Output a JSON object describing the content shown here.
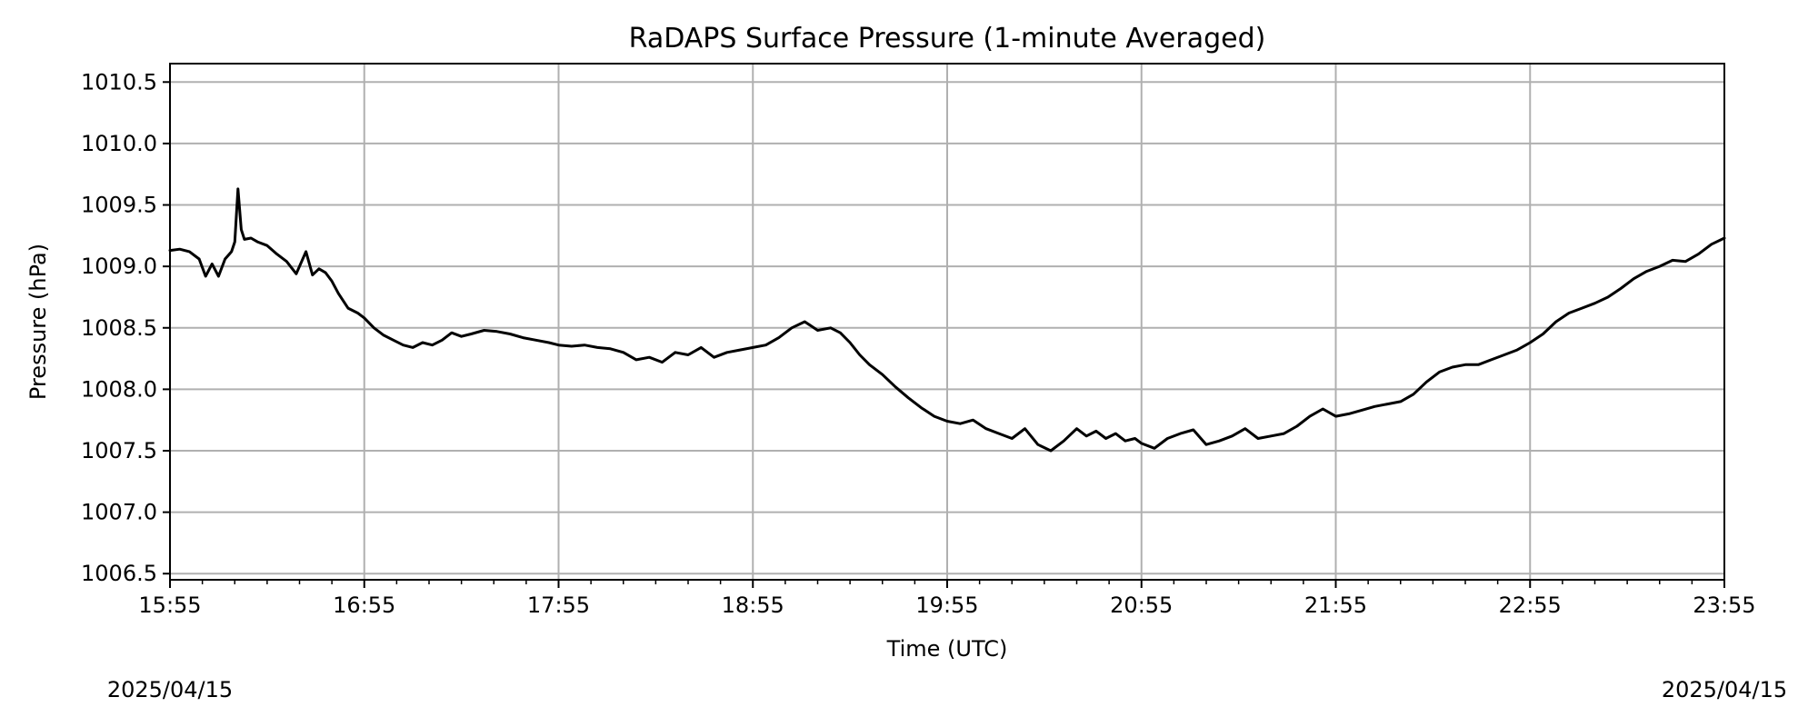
{
  "chart_data": {
    "type": "line",
    "title": "RaDAPS Surface Pressure (1-minute Averaged)",
    "xlabel": "Time (UTC)",
    "ylabel": "Pressure (hPa)",
    "x_tick_labels": [
      "15:55",
      "16:55",
      "17:55",
      "18:55",
      "19:55",
      "20:55",
      "21:55",
      "22:55",
      "23:55"
    ],
    "y_tick_labels": [
      "1006.5",
      "1007.0",
      "1007.5",
      "1008.0",
      "1008.5",
      "1009.0",
      "1009.5",
      "1010.0",
      "1010.5"
    ],
    "y_ticks": [
      1006.5,
      1007.0,
      1007.5,
      1008.0,
      1008.5,
      1009.0,
      1009.5,
      1010.0,
      1010.5
    ],
    "xlim": [
      "15:55",
      "23:55"
    ],
    "ylim": [
      1006.45,
      1010.65
    ],
    "grid": true,
    "date_left": "2025/04/15",
    "date_right": "2025/04/15",
    "series": [
      {
        "color": "#000000",
        "x": [
          "15:55",
          "15:58",
          "16:01",
          "16:04",
          "16:06",
          "16:08",
          "16:10",
          "16:12",
          "16:14",
          "16:15",
          "16:16",
          "16:17",
          "16:18",
          "16:20",
          "16:22",
          "16:25",
          "16:28",
          "16:31",
          "16:34",
          "16:37",
          "16:39",
          "16:41",
          "16:43",
          "16:45",
          "16:47",
          "16:50",
          "16:53",
          "16:55",
          "16:58",
          "17:01",
          "17:04",
          "17:07",
          "17:10",
          "17:13",
          "17:16",
          "17:19",
          "17:22",
          "17:25",
          "17:28",
          "17:32",
          "17:36",
          "17:40",
          "17:44",
          "17:48",
          "17:52",
          "17:55",
          "17:59",
          "18:03",
          "18:07",
          "18:11",
          "18:15",
          "18:19",
          "18:23",
          "18:27",
          "18:31",
          "18:35",
          "18:39",
          "18:43",
          "18:47",
          "18:51",
          "18:55",
          "18:59",
          "19:03",
          "19:07",
          "19:11",
          "19:15",
          "19:19",
          "19:22",
          "19:25",
          "19:28",
          "19:31",
          "19:35",
          "19:39",
          "19:43",
          "19:47",
          "19:51",
          "19:55",
          "19:59",
          "20:03",
          "20:07",
          "20:11",
          "20:15",
          "20:19",
          "20:23",
          "20:27",
          "20:31",
          "20:35",
          "20:38",
          "20:41",
          "20:44",
          "20:47",
          "20:50",
          "20:53",
          "20:55",
          "20:59",
          "21:03",
          "21:07",
          "21:11",
          "21:15",
          "21:19",
          "21:23",
          "21:27",
          "21:31",
          "21:35",
          "21:39",
          "21:43",
          "21:47",
          "21:51",
          "21:55",
          "21:59",
          "22:03",
          "22:07",
          "22:11",
          "22:15",
          "22:19",
          "22:23",
          "22:27",
          "22:31",
          "22:35",
          "22:39",
          "22:43",
          "22:47",
          "22:51",
          "22:55",
          "22:59",
          "23:03",
          "23:07",
          "23:11",
          "23:15",
          "23:19",
          "23:23",
          "23:27",
          "23:31",
          "23:35",
          "23:39",
          "23:43",
          "23:47",
          "23:51",
          "23:55"
        ],
        "y": [
          1009.13,
          1009.14,
          1009.12,
          1009.06,
          1008.92,
          1009.02,
          1008.92,
          1009.06,
          1009.12,
          1009.2,
          1009.63,
          1009.3,
          1009.22,
          1009.23,
          1009.2,
          1009.17,
          1009.1,
          1009.04,
          1008.94,
          1009.12,
          1008.93,
          1008.98,
          1008.95,
          1008.88,
          1008.78,
          1008.66,
          1008.62,
          1008.58,
          1008.5,
          1008.44,
          1008.4,
          1008.36,
          1008.34,
          1008.38,
          1008.36,
          1008.4,
          1008.46,
          1008.43,
          1008.45,
          1008.48,
          1008.47,
          1008.45,
          1008.42,
          1008.4,
          1008.38,
          1008.36,
          1008.35,
          1008.36,
          1008.34,
          1008.33,
          1008.3,
          1008.24,
          1008.26,
          1008.22,
          1008.3,
          1008.28,
          1008.34,
          1008.26,
          1008.3,
          1008.32,
          1008.34,
          1008.36,
          1008.42,
          1008.5,
          1008.55,
          1008.48,
          1008.5,
          1008.46,
          1008.38,
          1008.28,
          1008.2,
          1008.12,
          1008.02,
          1007.93,
          1007.85,
          1007.78,
          1007.74,
          1007.72,
          1007.75,
          1007.68,
          1007.64,
          1007.6,
          1007.68,
          1007.55,
          1007.5,
          1007.58,
          1007.68,
          1007.62,
          1007.66,
          1007.6,
          1007.64,
          1007.58,
          1007.6,
          1007.56,
          1007.52,
          1007.6,
          1007.64,
          1007.67,
          1007.55,
          1007.58,
          1007.62,
          1007.68,
          1007.6,
          1007.62,
          1007.64,
          1007.7,
          1007.78,
          1007.84,
          1007.78,
          1007.8,
          1007.83,
          1007.86,
          1007.88,
          1007.9,
          1007.96,
          1008.06,
          1008.14,
          1008.18,
          1008.2,
          1008.2,
          1008.24,
          1008.28,
          1008.32,
          1008.38,
          1008.45,
          1008.55,
          1008.62,
          1008.66,
          1008.7,
          1008.75,
          1008.82,
          1008.9,
          1008.96,
          1009.0,
          1009.05,
          1009.04,
          1009.1,
          1009.18,
          1009.23
        ]
      }
    ]
  }
}
